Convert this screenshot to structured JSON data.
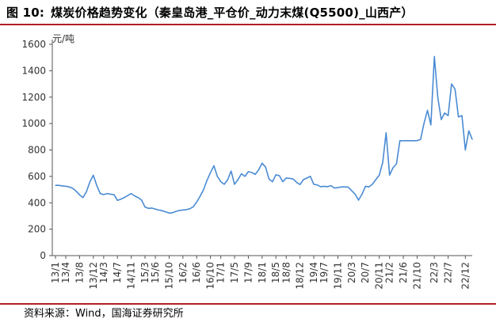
{
  "figure": {
    "label": "图 10:",
    "title": "煤炭价格趋势变化（秦皇岛港_平仓价_动力末煤(Q5500)_山西产）"
  },
  "source_text": "资料来源：Wind，国海证券研究所",
  "chart_data": {
    "type": "line",
    "title": "煤炭价格趋势变化（秦皇岛港_平仓价_动力末煤(Q5500)_山西产）",
    "unit_label": "元/吨",
    "xlabel": "",
    "ylabel": "元/吨",
    "ylim": [
      0,
      1600
    ],
    "yticks": [
      0,
      200,
      400,
      600,
      800,
      1000,
      1200,
      1400,
      1600
    ],
    "xticks": [
      "13/1",
      "13/4",
      "13/8",
      "13/12",
      "14/3",
      "14/7",
      "14/11",
      "15/3",
      "15/6",
      "15/10",
      "16/2",
      "16/6",
      "16/10",
      "17/1",
      "17/5",
      "17/9",
      "18/1",
      "18/5",
      "18/8",
      "18/12",
      "19/4",
      "19/7",
      "19/11",
      "20/3",
      "20/7",
      "20/11",
      "21/2",
      "21/6",
      "21/10",
      "22/3",
      "22/7",
      "22/12"
    ],
    "grid": false,
    "legend": "none",
    "line_color": "#4a8bd4",
    "series": [
      {
        "points": [
          [
            "2013-01",
            532
          ],
          [
            "2013-02",
            532
          ],
          [
            "2013-03",
            528
          ],
          [
            "2013-04",
            525
          ],
          [
            "2013-05",
            520
          ],
          [
            "2013-06",
            510
          ],
          [
            "2013-07",
            488
          ],
          [
            "2013-08",
            460
          ],
          [
            "2013-09",
            440
          ],
          [
            "2013-10",
            485
          ],
          [
            "2013-11",
            560
          ],
          [
            "2013-12",
            608
          ],
          [
            "2014-01",
            530
          ],
          [
            "2014-02",
            470
          ],
          [
            "2014-03",
            462
          ],
          [
            "2014-04",
            470
          ],
          [
            "2014-05",
            465
          ],
          [
            "2014-06",
            462
          ],
          [
            "2014-07",
            418
          ],
          [
            "2014-08",
            428
          ],
          [
            "2014-09",
            440
          ],
          [
            "2014-10",
            455
          ],
          [
            "2014-11",
            470
          ],
          [
            "2014-12",
            452
          ],
          [
            "2015-01",
            440
          ],
          [
            "2015-02",
            420
          ],
          [
            "2015-03",
            368
          ],
          [
            "2015-04",
            358
          ],
          [
            "2015-05",
            360
          ],
          [
            "2015-06",
            352
          ],
          [
            "2015-07",
            345
          ],
          [
            "2015-08",
            340
          ],
          [
            "2015-09",
            332
          ],
          [
            "2015-10",
            322
          ],
          [
            "2015-11",
            325
          ],
          [
            "2015-12",
            335
          ],
          [
            "2016-01",
            342
          ],
          [
            "2016-02",
            345
          ],
          [
            "2016-03",
            348
          ],
          [
            "2016-04",
            355
          ],
          [
            "2016-05",
            370
          ],
          [
            "2016-06",
            405
          ],
          [
            "2016-07",
            450
          ],
          [
            "2016-08",
            500
          ],
          [
            "2016-09",
            570
          ],
          [
            "2016-10",
            628
          ],
          [
            "2016-11",
            680
          ],
          [
            "2016-12",
            600
          ],
          [
            "2017-01",
            560
          ],
          [
            "2017-02",
            540
          ],
          [
            "2017-03",
            575
          ],
          [
            "2017-04",
            640
          ],
          [
            "2017-05",
            540
          ],
          [
            "2017-06",
            575
          ],
          [
            "2017-07",
            620
          ],
          [
            "2017-08",
            600
          ],
          [
            "2017-09",
            635
          ],
          [
            "2017-10",
            630
          ],
          [
            "2017-11",
            615
          ],
          [
            "2017-12",
            650
          ],
          [
            "2018-01",
            700
          ],
          [
            "2018-02",
            670
          ],
          [
            "2018-03",
            580
          ],
          [
            "2018-04",
            560
          ],
          [
            "2018-05",
            612
          ],
          [
            "2018-06",
            605
          ],
          [
            "2018-07",
            560
          ],
          [
            "2018-08",
            588
          ],
          [
            "2018-09",
            585
          ],
          [
            "2018-10",
            580
          ],
          [
            "2018-11",
            555
          ],
          [
            "2018-12",
            538
          ],
          [
            "2019-01",
            575
          ],
          [
            "2019-02",
            588
          ],
          [
            "2019-03",
            600
          ],
          [
            "2019-04",
            540
          ],
          [
            "2019-05",
            535
          ],
          [
            "2019-06",
            522
          ],
          [
            "2019-07",
            525
          ],
          [
            "2019-08",
            522
          ],
          [
            "2019-09",
            530
          ],
          [
            "2019-10",
            512
          ],
          [
            "2019-11",
            515
          ],
          [
            "2019-12",
            520
          ],
          [
            "2020-01",
            520
          ],
          [
            "2020-02",
            518
          ],
          [
            "2020-03",
            492
          ],
          [
            "2020-04",
            465
          ],
          [
            "2020-05",
            420
          ],
          [
            "2020-06",
            465
          ],
          [
            "2020-07",
            525
          ],
          [
            "2020-08",
            520
          ],
          [
            "2020-09",
            540
          ],
          [
            "2020-10",
            575
          ],
          [
            "2020-11",
            608
          ],
          [
            "2020-12",
            705
          ],
          [
            "2021-01",
            930
          ],
          [
            "2021-02",
            610
          ],
          [
            "2021-03",
            665
          ],
          [
            "2021-04",
            695
          ],
          [
            "2021-05",
            870
          ],
          [
            "2021-06",
            870
          ],
          [
            "2021-07",
            870
          ],
          [
            "2021-08",
            870
          ],
          [
            "2021-09",
            870
          ],
          [
            "2021-10",
            870
          ],
          [
            "2021-11",
            880
          ],
          [
            "2021-12",
            1000
          ],
          [
            "2022-01",
            1100
          ],
          [
            "2022-02",
            990
          ],
          [
            "2022-03",
            1508
          ],
          [
            "2022-04",
            1200
          ],
          [
            "2022-05",
            1030
          ],
          [
            "2022-06",
            1080
          ],
          [
            "2022-07",
            1060
          ],
          [
            "2022-08",
            1300
          ],
          [
            "2022-09",
            1260
          ],
          [
            "2022-10",
            1050
          ],
          [
            "2022-11",
            1060
          ],
          [
            "2022-12",
            800
          ],
          [
            "2023-01",
            945
          ],
          [
            "2023-02",
            880
          ]
        ]
      }
    ]
  }
}
